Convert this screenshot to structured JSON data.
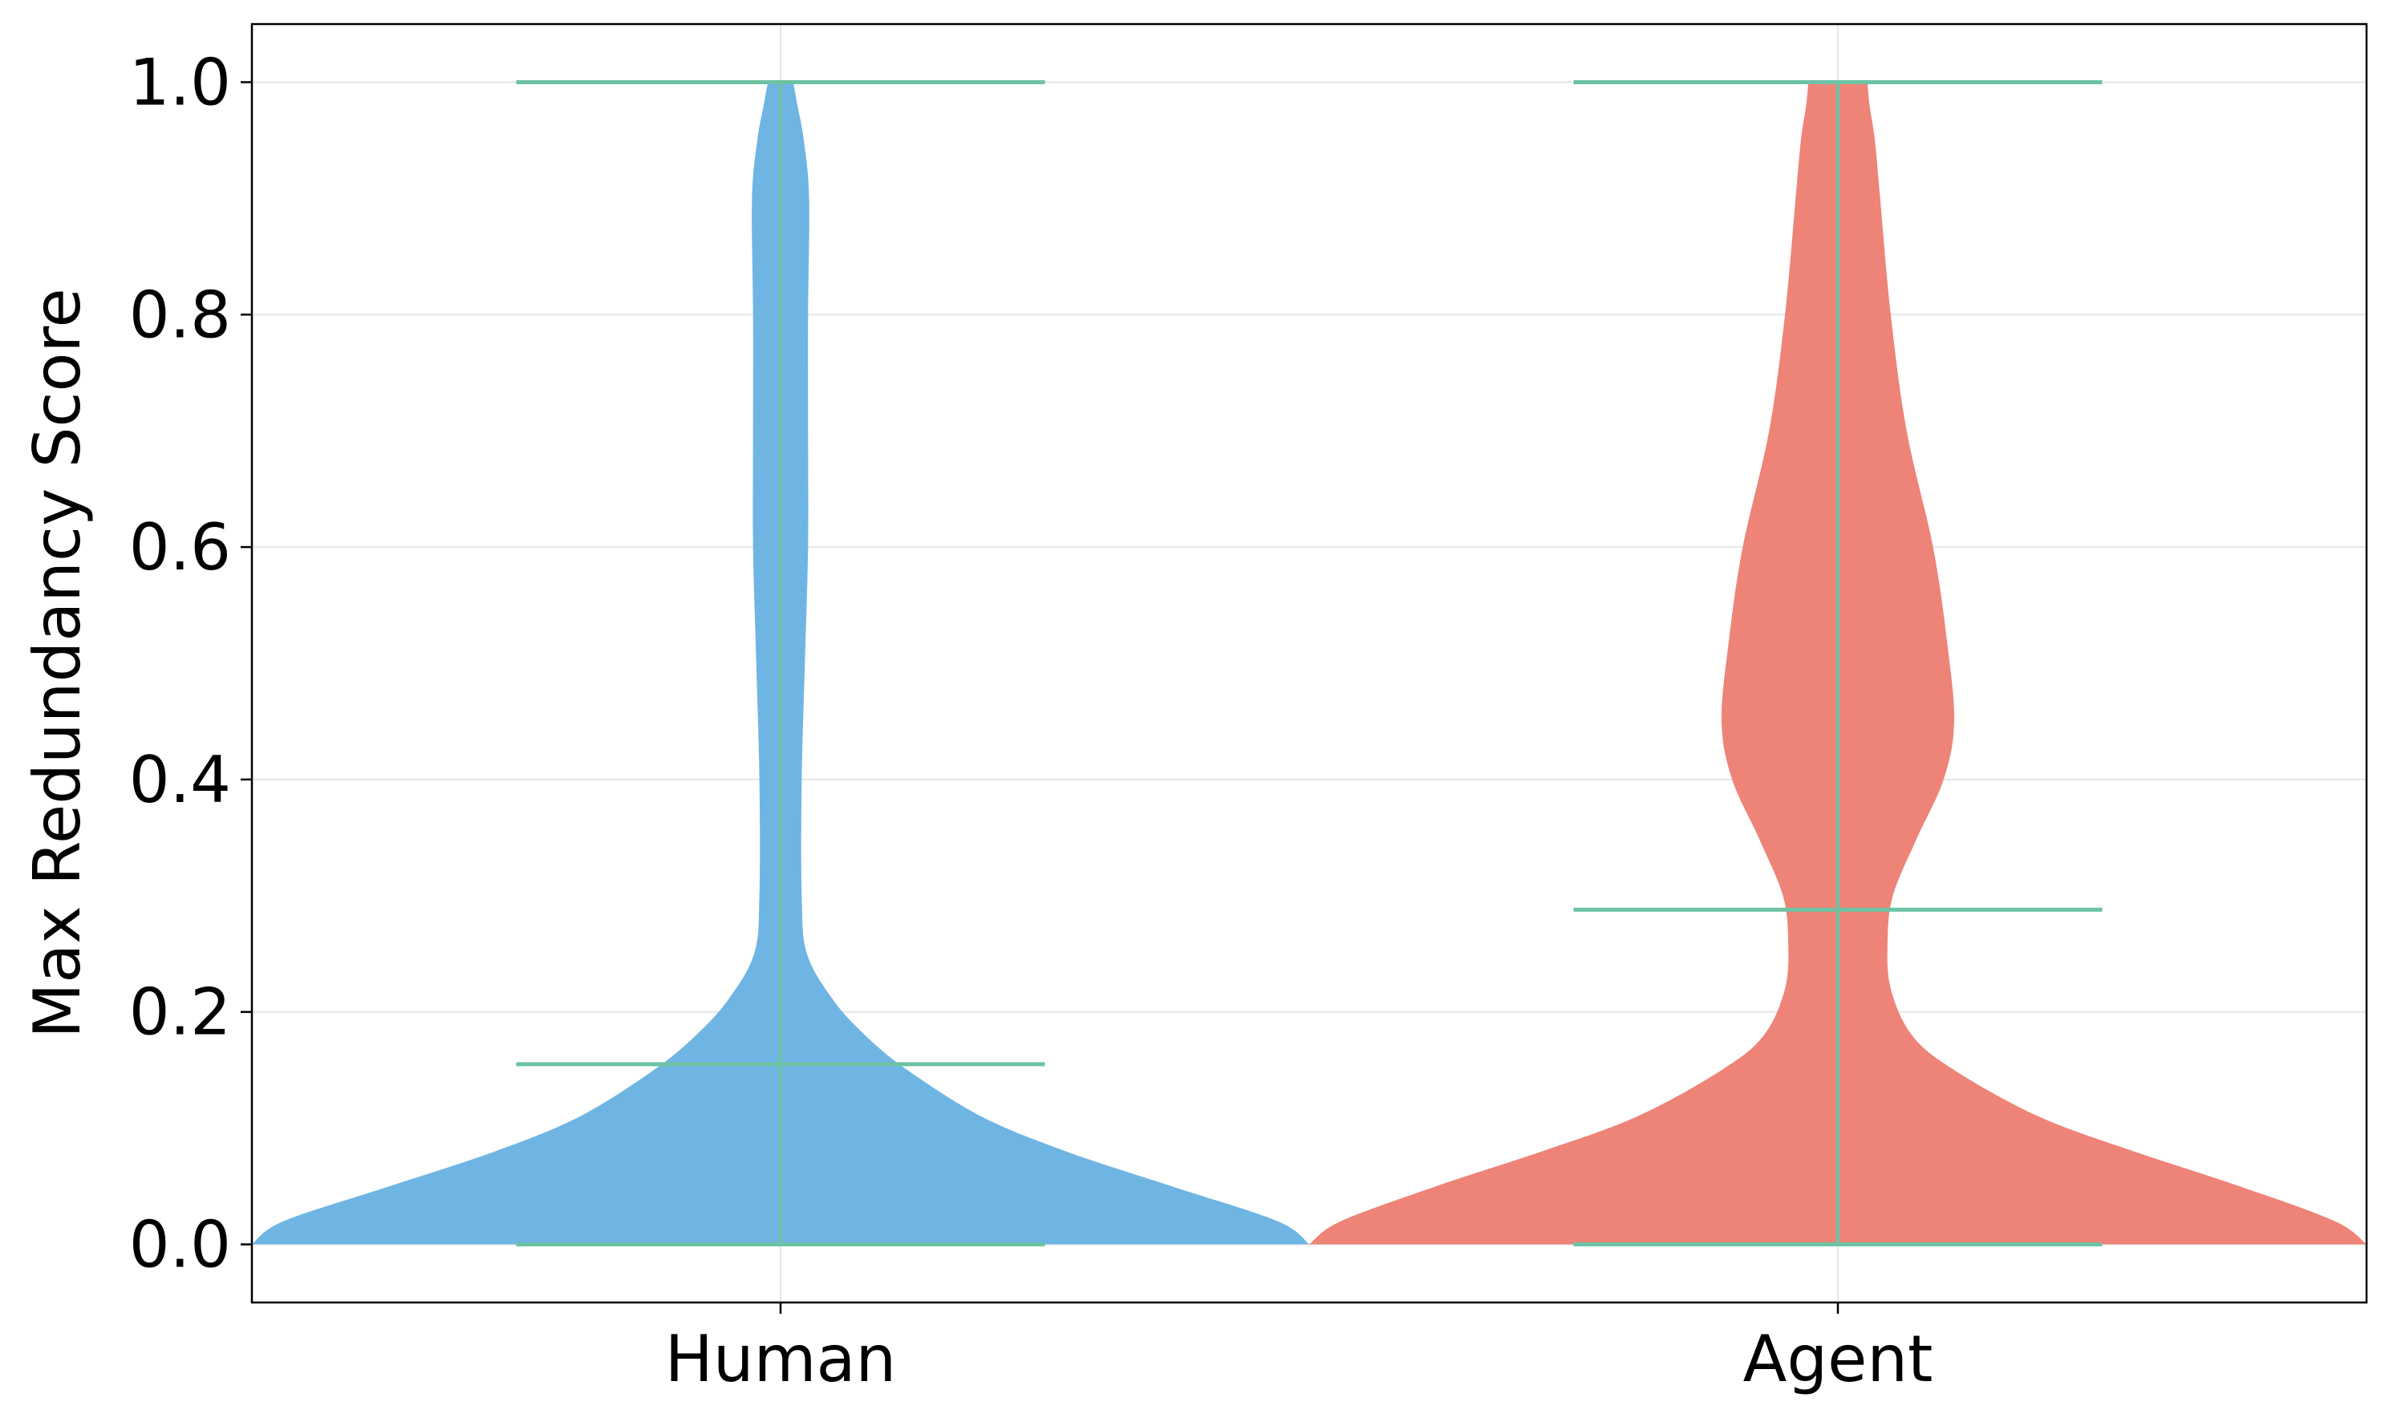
{
  "chart_data": {
    "type": "violin",
    "ylabel": "Max Redundancy Score",
    "ylim": [
      -0.05,
      1.05
    ],
    "yticks": [
      0.0,
      0.2,
      0.4,
      0.6,
      0.8,
      1.0
    ],
    "ytick_labels": [
      "0.0",
      "0.2",
      "0.4",
      "0.6",
      "0.8",
      "1.0"
    ],
    "grid": true,
    "categories": [
      "Human",
      "Agent"
    ],
    "colors": {
      "Human": "#6fb5e3",
      "Agent": "#ee8378",
      "stat_lines": "#6cc2a3"
    },
    "series": [
      {
        "name": "Human",
        "min": 0.0,
        "median": 0.155,
        "max": 1.0,
        "density": [
          {
            "y": 0.0,
            "w": 0.5
          },
          {
            "y": 0.02,
            "w": 0.47
          },
          {
            "y": 0.05,
            "w": 0.37
          },
          {
            "y": 0.08,
            "w": 0.27
          },
          {
            "y": 0.11,
            "w": 0.19
          },
          {
            "y": 0.15,
            "w": 0.12
          },
          {
            "y": 0.18,
            "w": 0.08
          },
          {
            "y": 0.21,
            "w": 0.05
          },
          {
            "y": 0.25,
            "w": 0.025
          },
          {
            "y": 0.3,
            "w": 0.02
          },
          {
            "y": 0.4,
            "w": 0.02
          },
          {
            "y": 0.5,
            "w": 0.023
          },
          {
            "y": 0.6,
            "w": 0.026
          },
          {
            "y": 0.7,
            "w": 0.026
          },
          {
            "y": 0.8,
            "w": 0.026
          },
          {
            "y": 0.9,
            "w": 0.027
          },
          {
            "y": 0.95,
            "w": 0.022
          },
          {
            "y": 0.98,
            "w": 0.016
          },
          {
            "y": 1.0,
            "w": 0.012
          }
        ]
      },
      {
        "name": "Agent",
        "min": 0.0,
        "median": 0.288,
        "max": 1.0,
        "density": [
          {
            "y": 0.0,
            "w": 0.5
          },
          {
            "y": 0.02,
            "w": 0.47
          },
          {
            "y": 0.05,
            "w": 0.38
          },
          {
            "y": 0.08,
            "w": 0.28
          },
          {
            "y": 0.11,
            "w": 0.19
          },
          {
            "y": 0.15,
            "w": 0.11
          },
          {
            "y": 0.18,
            "w": 0.07
          },
          {
            "y": 0.22,
            "w": 0.05
          },
          {
            "y": 0.26,
            "w": 0.047
          },
          {
            "y": 0.3,
            "w": 0.052
          },
          {
            "y": 0.35,
            "w": 0.075
          },
          {
            "y": 0.4,
            "w": 0.1
          },
          {
            "y": 0.45,
            "w": 0.11
          },
          {
            "y": 0.52,
            "w": 0.103
          },
          {
            "y": 0.6,
            "w": 0.09
          },
          {
            "y": 0.7,
            "w": 0.065
          },
          {
            "y": 0.8,
            "w": 0.05
          },
          {
            "y": 0.9,
            "w": 0.04
          },
          {
            "y": 0.95,
            "w": 0.035
          },
          {
            "y": 0.98,
            "w": 0.03
          },
          {
            "y": 1.0,
            "w": 0.028
          }
        ]
      }
    ]
  }
}
